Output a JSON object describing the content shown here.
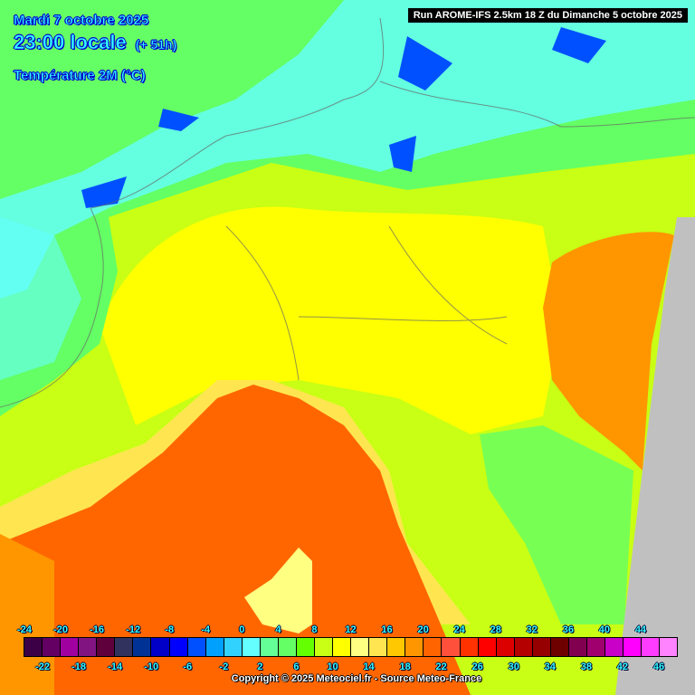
{
  "header": {
    "date": "Mardi 7 octobre 2025",
    "time": "23:00 locale",
    "lead": "(+ 51h)",
    "parameter": "Température 2M (°C)",
    "run": "Run AROME-IFS 2.5km 18 Z du Dimanche 5 octobre 2025"
  },
  "legend": {
    "top_labels": [
      "-24",
      "-20",
      "-16",
      "-12",
      "-8",
      "-4",
      "0",
      "4",
      "8",
      "12",
      "16",
      "20",
      "24",
      "28",
      "32",
      "36",
      "40",
      "44"
    ],
    "bottom_labels": [
      "-22",
      "-18",
      "-14",
      "-10",
      "-6",
      "-2",
      "2",
      "6",
      "10",
      "14",
      "18",
      "22",
      "26",
      "30",
      "34",
      "38",
      "42",
      "46"
    ],
    "colors": [
      "#3c0046",
      "#640064",
      "#a000a0",
      "#821482",
      "#5f003c",
      "#32325f",
      "#003296",
      "#0000c8",
      "#0000ff",
      "#0050ff",
      "#00a0ff",
      "#32d2ff",
      "#64ffff",
      "#64ff96",
      "#64ff64",
      "#64ff00",
      "#c8ff14",
      "#ffff00",
      "#ffff82",
      "#ffe650",
      "#ffc800",
      "#ff9600",
      "#ff6400",
      "#ff503c",
      "#ff3200",
      "#ff0000",
      "#dc0000",
      "#b40000",
      "#960000",
      "#6e0000",
      "#820050",
      "#a0006e",
      "#c800c8",
      "#ff00ff",
      "#ff3cff",
      "#ff82ff"
    ]
  },
  "copyright": "Copyright © 2025 Meteociel.fr - Source Meteo-France",
  "map_colors": {
    "sea": "#ff6600",
    "plain": "#ffff00",
    "mountain": "#64ff64",
    "alps_high": "#64ffff",
    "peaks": "#0050ff",
    "outside": "#c0c0c0"
  }
}
